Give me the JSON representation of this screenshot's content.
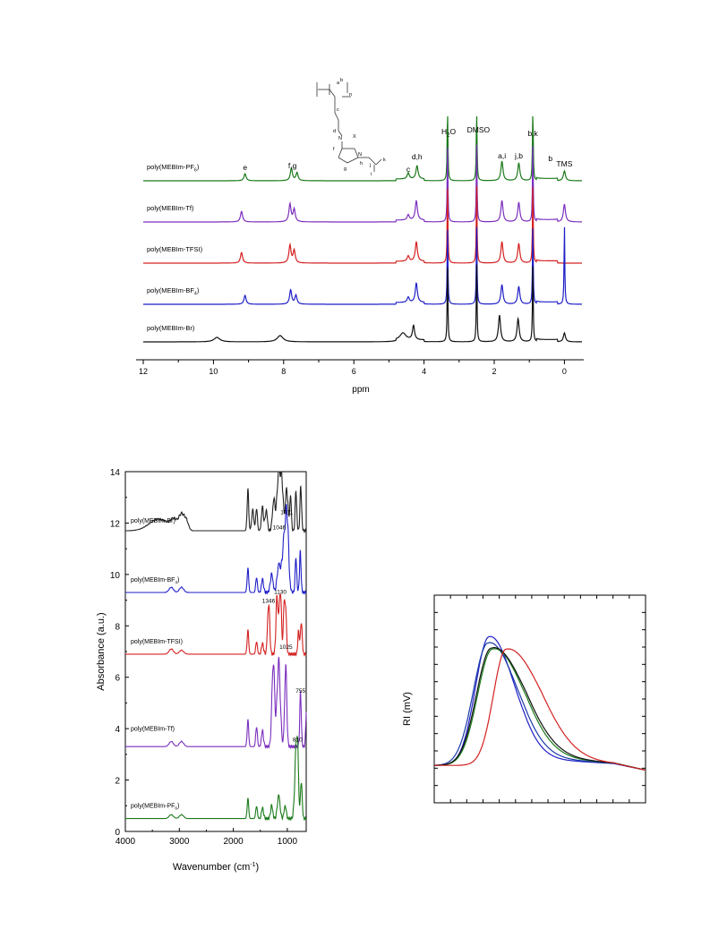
{
  "chart_data": [
    {
      "type": "line",
      "panel": "nmr",
      "xlabel": "ppm",
      "xlim": [
        12,
        -0.5
      ],
      "xticks": [
        "12",
        "10",
        "8",
        "6",
        "4",
        "2",
        "0"
      ],
      "xtick_values": [
        12,
        10,
        8,
        6,
        4,
        2,
        0
      ],
      "structure_labels": {
        "a": "a",
        "b": "b",
        "n": "n",
        "c": "c",
        "d": "d",
        "f": "f",
        "g": "g",
        "h": "h",
        "i": "i",
        "j": "j",
        "k": "k",
        "N": "N",
        "X": "X"
      },
      "series": [
        {
          "name": "poly(MEBIm-PF6)",
          "name_main": "poly(MEBIm-PF",
          "name_sub": "6",
          "name_end": ")",
          "color": "#1a7a1a",
          "peaks": [
            [
              9.1,
              8
            ],
            [
              7.78,
              14
            ],
            [
              7.62,
              9
            ],
            [
              4.45,
              7
            ],
            [
              4.2,
              15
            ],
            [
              3.33,
              90
            ],
            [
              2.5,
              90
            ],
            [
              1.78,
              22
            ],
            [
              1.3,
              20
            ],
            [
              0.9,
              90
            ],
            [
              0.0,
              11
            ]
          ]
        },
        {
          "name": "poly(MEBIm-Tf)",
          "name_main": "poly(MEBIm-Tf)",
          "name_sub": "",
          "name_end": "",
          "color": "#7b2fbe",
          "peaks": [
            [
              9.2,
              12
            ],
            [
              7.82,
              20
            ],
            [
              7.7,
              14
            ],
            [
              4.45,
              6
            ],
            [
              4.22,
              22
            ],
            [
              3.33,
              90
            ],
            [
              2.5,
              90
            ],
            [
              1.78,
              24
            ],
            [
              1.3,
              22
            ],
            [
              0.9,
              90
            ],
            [
              0.0,
              20
            ]
          ]
        },
        {
          "name": "poly(MEBIm-TFSI)",
          "name_main": "poly(MEBIm-TFSI)",
          "name_sub": "",
          "name_end": "",
          "color": "#d42020",
          "peaks": [
            [
              9.2,
              12
            ],
            [
              7.82,
              20
            ],
            [
              7.7,
              14
            ],
            [
              4.45,
              6
            ],
            [
              4.22,
              22
            ],
            [
              3.33,
              90
            ],
            [
              2.5,
              90
            ],
            [
              1.78,
              24
            ],
            [
              1.3,
              22
            ],
            [
              0.9,
              90
            ],
            [
              0.0,
              0
            ]
          ]
        },
        {
          "name": "poly(MEBIm-BF4)",
          "name_main": "poly(MEBIm-BF",
          "name_sub": "4",
          "name_end": ")",
          "color": "#1f1fc8",
          "peaks": [
            [
              9.1,
              10
            ],
            [
              7.8,
              16
            ],
            [
              7.65,
              10
            ],
            [
              4.45,
              6
            ],
            [
              4.22,
              22
            ],
            [
              3.33,
              90
            ],
            [
              2.5,
              90
            ],
            [
              1.78,
              22
            ],
            [
              1.3,
              20
            ],
            [
              0.9,
              90
            ],
            [
              0.0,
              90
            ]
          ]
        },
        {
          "name": "poly(MEBIm-Br)",
          "name_main": "poly(MEBIm-Br)",
          "name_sub": "",
          "name_end": "",
          "color": "#111111",
          "peaks": [
            [
              9.9,
              5
            ],
            [
              8.1,
              7
            ],
            [
              4.6,
              8
            ],
            [
              4.3,
              16
            ],
            [
              3.33,
              90
            ],
            [
              2.5,
              90
            ],
            [
              1.85,
              30
            ],
            [
              1.32,
              26
            ],
            [
              0.9,
              90
            ],
            [
              0.0,
              10
            ]
          ]
        }
      ],
      "annotations": [
        {
          "text": "e",
          "sub": "",
          "x": 9.1
        },
        {
          "text": "f,g",
          "sub": "",
          "x": 7.75
        },
        {
          "text": "c",
          "sub": "",
          "x": 4.45
        },
        {
          "text": "d,h",
          "sub": "",
          "x": 4.2
        },
        {
          "text": "H",
          "sub": "2",
          "end": "O",
          "x": 3.3
        },
        {
          "text": "DMSO",
          "sub": "",
          "x": 2.45
        },
        {
          "text": "a,i",
          "sub": "",
          "x": 1.78
        },
        {
          "text": "j,b",
          "sub": "",
          "x": 1.3
        },
        {
          "text": "b,k",
          "sub": "",
          "x": 0.9
        },
        {
          "text": "b",
          "sub": "",
          "x": 0.4
        },
        {
          "text": "TMS",
          "sub": "",
          "x": 0.0
        }
      ]
    },
    {
      "type": "line",
      "panel": "ftir",
      "xlabel": "Wavenumber (cm",
      "xlabel_sup": "-1",
      "xlabel_end": ")",
      "ylabel": "Absorbance (a.u.)",
      "xlim": [
        4000,
        650
      ],
      "ylim": [
        0,
        14
      ],
      "xticks": [
        "4000",
        "3000",
        "2000",
        "1000"
      ],
      "xtick_values": [
        4000,
        3000,
        2000,
        1000
      ],
      "yticks": [
        "0",
        "2",
        "4",
        "6",
        "8",
        "10",
        "12",
        "14"
      ],
      "ytick_values": [
        0,
        2,
        4,
        6,
        8,
        10,
        12,
        14
      ],
      "series": [
        {
          "name": "poly(MEBIm-Br)",
          "name_main": "poly(MEBIm-Br)",
          "name_sub": "",
          "name_end": "",
          "color": "#222222",
          "baseline": 11.7,
          "bands": [
            [
              3380,
              0.45,
              180
            ],
            [
              3100,
              0.35,
              60
            ],
            [
              2960,
              0.6,
              50
            ],
            [
              2870,
              0.35,
              40
            ],
            [
              1730,
              1.55,
              15
            ],
            [
              1640,
              0.8,
              20
            ],
            [
              1570,
              0.9,
              15
            ],
            [
              1460,
              0.9,
              20
            ],
            [
              1390,
              0.8,
              20
            ],
            [
              1250,
              1.2,
              25
            ],
            [
              1160,
              2.3,
              30
            ],
            [
              1100,
              1.8,
              25
            ],
            [
              1011,
              1.6,
              25
            ],
            [
              940,
              1.3,
              15
            ],
            [
              840,
              1.5,
              15
            ],
            [
              750,
              1.7,
              15
            ]
          ]
        },
        {
          "name": "poly(MEBIm-BF4)",
          "name_main": "poly(MEBIm-BF",
          "name_sub": "4",
          "name_end": ")",
          "color": "#1f1fc8",
          "baseline": 9.3,
          "bands": [
            [
              3150,
              0.2,
              40
            ],
            [
              2960,
              0.2,
              40
            ],
            [
              1730,
              0.9,
              15
            ],
            [
              1570,
              0.6,
              15
            ],
            [
              1460,
              0.5,
              20
            ],
            [
              1290,
              0.7,
              25
            ],
            [
              1160,
              1.0,
              30
            ],
            [
              1046,
              2.3,
              45
            ],
            [
              1000,
              1.7,
              25
            ],
            [
              840,
              1.3,
              15
            ],
            [
              760,
              1.5,
              15
            ]
          ]
        },
        {
          "name": "poly(MEBIm-TFSI)",
          "name_main": "poly(MEBIm-TFSI)",
          "name_sub": "",
          "name_end": "",
          "color": "#d42020",
          "baseline": 6.9,
          "bands": [
            [
              3150,
              0.2,
              40
            ],
            [
              2960,
              0.15,
              40
            ],
            [
              1730,
              0.9,
              15
            ],
            [
              1570,
              0.5,
              15
            ],
            [
              1460,
              0.4,
              20
            ],
            [
              1346,
              2.0,
              20
            ],
            [
              1190,
              2.2,
              20
            ],
            [
              1130,
              2.5,
              20
            ],
            [
              1055,
              2.0,
              18
            ],
            [
              1025,
              1.1,
              15
            ],
            [
              790,
              0.9,
              15
            ],
            [
              740,
              1.3,
              15
            ]
          ]
        },
        {
          "name": "poly(MEBIm-Tf)",
          "name_main": "poly(MEBIm-Tf)",
          "name_sub": "",
          "name_end": "",
          "color": "#7b2fbe",
          "baseline": 3.3,
          "bands": [
            [
              3150,
              0.2,
              40
            ],
            [
              2960,
              0.2,
              40
            ],
            [
              1730,
              1.0,
              15
            ],
            [
              1570,
              0.8,
              15
            ],
            [
              1460,
              0.6,
              20
            ],
            [
              1260,
              3.3,
              25
            ],
            [
              1160,
              3.3,
              30
            ],
            [
              1030,
              3.1,
              20
            ],
            [
              755,
              2.0,
              15
            ],
            [
              640,
              1.9,
              15
            ]
          ]
        },
        {
          "name": "poly(MEBIm-PF6)",
          "name_main": "poly(MEBIm-PF",
          "name_sub": "6",
          "name_end": ")",
          "color": "#1a7a1a",
          "baseline": 0.5,
          "bands": [
            [
              3150,
              0.15,
              40
            ],
            [
              2960,
              0.15,
              40
            ],
            [
              1730,
              0.75,
              15
            ],
            [
              1570,
              0.5,
              15
            ],
            [
              1460,
              0.4,
              20
            ],
            [
              1290,
              0.5,
              20
            ],
            [
              1160,
              0.9,
              25
            ],
            [
              1040,
              0.5,
              20
            ],
            [
              840,
              2.2,
              25
            ],
            [
              810,
              2.0,
              20
            ],
            [
              740,
              1.5,
              15
            ]
          ]
        }
      ],
      "annotations": [
        {
          "text": "1011",
          "x": 1011,
          "y": 12.35
        },
        {
          "text": "1046",
          "x": 1150,
          "y": 11.75
        },
        {
          "text": "1130",
          "x": 1130,
          "y": 9.25
        },
        {
          "text": "1346",
          "x": 1346,
          "y": 8.9
        },
        {
          "text": "1025",
          "x": 1025,
          "y": 7.1
        },
        {
          "text": "755",
          "x": 755,
          "y": 5.4
        },
        {
          "text": "810",
          "x": 810,
          "y": 3.5
        }
      ]
    },
    {
      "type": "line",
      "panel": "gpc",
      "ylabel": "RI (mV)",
      "series": [
        {
          "color": "#1f1fc8",
          "peak_x": 0.26,
          "peak_y": 0.8,
          "w_left": 0.065,
          "w_right": 0.115,
          "tail": 0.06
        },
        {
          "color": "#1a3aa8",
          "peak_x": 0.255,
          "peak_y": 0.77,
          "w_left": 0.07,
          "w_right": 0.13,
          "tail": 0.07
        },
        {
          "color": "#1a7a1a",
          "peak_x": 0.275,
          "peak_y": 0.74,
          "w_left": 0.07,
          "w_right": 0.14,
          "tail": 0.08
        },
        {
          "color": "#111111",
          "peak_x": 0.27,
          "peak_y": 0.745,
          "w_left": 0.07,
          "w_right": 0.15,
          "tail": 0.08
        },
        {
          "color": "#d42020",
          "peak_x": 0.34,
          "peak_y": 0.74,
          "w_left": 0.06,
          "w_right": 0.16,
          "tail": 0.06
        }
      ]
    }
  ]
}
